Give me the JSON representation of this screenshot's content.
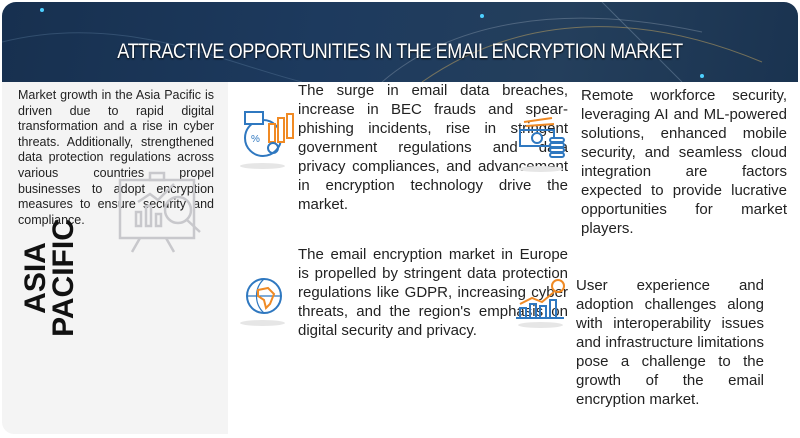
{
  "header": {
    "title": "ATTRACTIVE OPPORTUNITIES IN THE EMAIL ENCRYPTION MARKET"
  },
  "left_panel": {
    "text": "Market growth in the Asia Pacific is driven due to rapid digital transformation and a rise in cyber threats. Additionally, strengthened data protection regulations across various countries propel businesses to adopt encryption measures to ensure security and compliance.",
    "region_line1": "ASIA",
    "region_line2": "PACIFIC",
    "icon": "presentation-analytics-icon"
  },
  "items": [
    {
      "icon": "analytics-report-icon",
      "text": "The surge in email data breaches, increase in BEC frauds and spear-phishing incidents, rise in stringent government regulations and data privacy compliances, and advancement in encryption technology drive the market."
    },
    {
      "icon": "globe-icon",
      "text": "The email encryption market in Europe is propelled by stringent data protection regulations like GDPR, increasing cyber threats, and the region's emphasis on digital security and privacy."
    },
    {
      "icon": "money-coins-icon",
      "text": "Remote workforce security, leveraging AI and ML-powered solutions, enhanced mobile security, and seamless cloud integration are factors expected to provide lucrative opportunities for market players."
    },
    {
      "icon": "growth-chart-icon",
      "text": "User experience and adoption challenges along with interoperability issues and infrastructure limitations pose a challenge to the growth of the email encryption market."
    }
  ],
  "colors": {
    "header": "#1d3a5e",
    "accent_orange": "#f08a24",
    "accent_blue": "#2f78c0"
  }
}
